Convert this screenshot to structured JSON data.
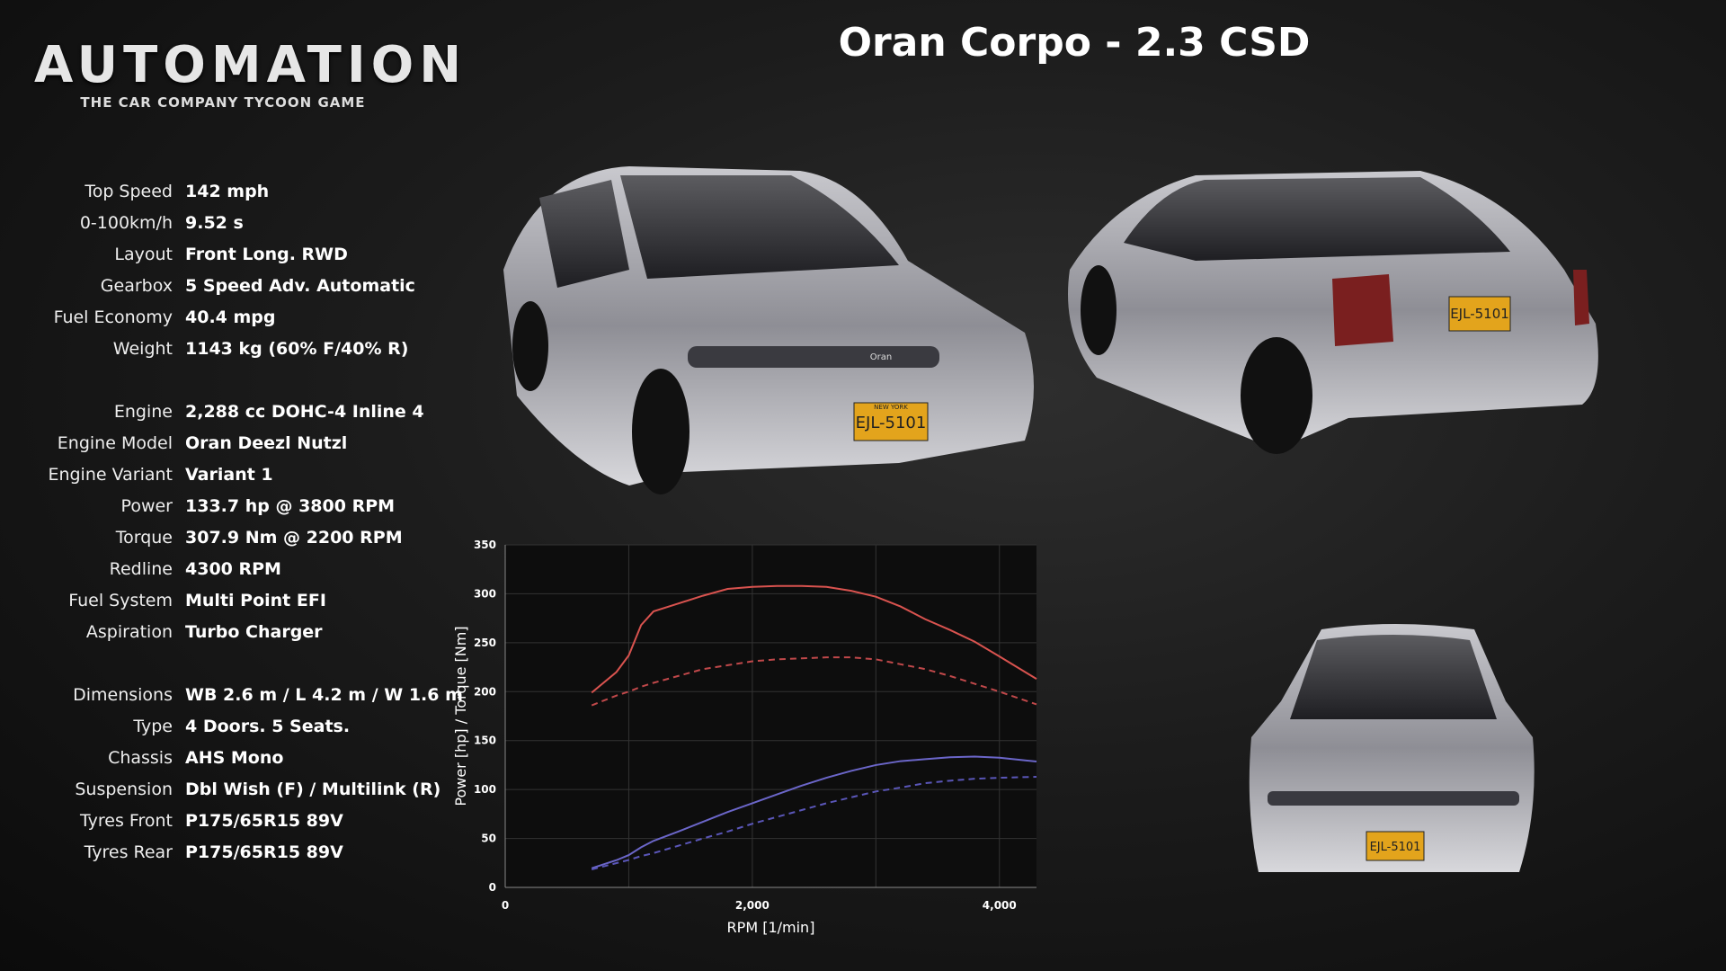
{
  "logo": {
    "title": "AUTOMATION",
    "subtitle": "THE CAR COMPANY TYCOON GAME"
  },
  "title": "Oran Corpo - 2.3 CSD",
  "specs": [
    [
      {
        "label": "Top Speed",
        "value": "142 mph"
      },
      {
        "label": "0-100km/h",
        "value": "9.52 s"
      },
      {
        "label": "Layout",
        "value": "Front Long. RWD"
      },
      {
        "label": "Gearbox",
        "value": "5 Speed Adv. Automatic"
      },
      {
        "label": "Fuel Economy",
        "value": "40.4 mpg"
      },
      {
        "label": "Weight",
        "value": "1143 kg (60% F/40% R)"
      }
    ],
    [
      {
        "label": "Engine",
        "value": "2,288 cc DOHC-4 Inline 4"
      },
      {
        "label": "Engine Model",
        "value": "Oran Deezl Nutzl"
      },
      {
        "label": "Engine Variant",
        "value": "Variant 1"
      },
      {
        "label": "Power",
        "value": "133.7 hp @ 3800 RPM"
      },
      {
        "label": "Torque",
        "value": "307.9 Nm @ 2200 RPM"
      },
      {
        "label": "Redline",
        "value": "4300 RPM"
      },
      {
        "label": "Fuel System",
        "value": "Multi Point EFI"
      },
      {
        "label": "Aspiration",
        "value": "Turbo Charger"
      }
    ],
    [
      {
        "label": "Dimensions",
        "value": "WB 2.6 m / L 4.2 m / W 1.6 m"
      },
      {
        "label": "Type",
        "value": "4 Doors. 5 Seats."
      },
      {
        "label": "Chassis",
        "value": "AHS Mono"
      },
      {
        "label": "Suspension",
        "value": "Dbl Wish (F) / Multilink (R)"
      },
      {
        "label": "Tyres Front",
        "value": "P175/65R15 89V"
      },
      {
        "label": "Tyres Rear",
        "value": "P175/65R15 89V"
      }
    ]
  ],
  "license_plate": "EJL-5101",
  "plate_state": "NEW YORK",
  "badge": "Oran",
  "chart": {
    "type": "line",
    "x_label": "RPM [1/min]",
    "y_label": "Power [hp] / Torque [Nm]",
    "x": [
      700,
      900,
      1000,
      1100,
      1200,
      1400,
      1600,
      1800,
      2000,
      2200,
      2400,
      2600,
      2800,
      3000,
      3200,
      3400,
      3600,
      3800,
      4000,
      4300
    ],
    "series": [
      {
        "color": "#d9534f",
        "dash": false,
        "values": [
          199,
          220,
          237,
          268,
          282,
          290,
          298,
          305,
          307,
          308,
          308,
          307,
          303,
          297,
          287,
          274,
          263,
          251,
          236,
          213
        ]
      },
      {
        "color": "#c0484a",
        "dash": true,
        "values": [
          186,
          196,
          200,
          205,
          209,
          216,
          223,
          227,
          231,
          233,
          234,
          235,
          235,
          233,
          228,
          223,
          216,
          208,
          200,
          187
        ]
      },
      {
        "color": "#6b66c9",
        "dash": false,
        "values": [
          19.6,
          27.8,
          33,
          41,
          47.5,
          57,
          67,
          77,
          86,
          95,
          104,
          112,
          119,
          125,
          129,
          131,
          133,
          133.7,
          132.5,
          128.6
        ]
      },
      {
        "color": "#5a56b8",
        "dash": true,
        "values": [
          18.3,
          24.8,
          28,
          32,
          35,
          42.5,
          50,
          57,
          65,
          72,
          79,
          86,
          92,
          98,
          102,
          106.5,
          109,
          111,
          112,
          113
        ]
      }
    ],
    "xlim": [
      0,
      4300
    ],
    "ylim": [
      0,
      350
    ],
    "xticks": [
      0,
      {
        "value": 2000,
        "label": "2,000"
      },
      {
        "value": 4000,
        "label": "4,000"
      }
    ],
    "x_minor_ticks": [
      1000,
      3000
    ],
    "yticks": [
      0,
      50,
      100,
      150,
      200,
      250,
      300,
      350
    ],
    "grid": true
  }
}
